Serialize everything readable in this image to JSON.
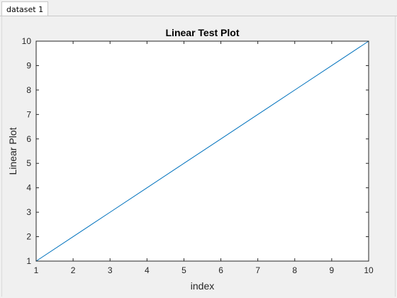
{
  "tabs": [
    {
      "label": "dataset 1",
      "active": true
    }
  ],
  "chart_data": {
    "type": "line",
    "title": "Linear Test Plot",
    "xlabel": "index",
    "ylabel": "Linear Plot",
    "x": [
      1,
      2,
      3,
      4,
      5,
      6,
      7,
      8,
      9,
      10
    ],
    "series": [
      {
        "values": [
          1,
          2,
          3,
          4,
          5,
          6,
          7,
          8,
          9,
          10
        ],
        "color": "#0072bd"
      }
    ],
    "xlim": [
      1,
      10
    ],
    "ylim": [
      1,
      10
    ],
    "xticks": [
      1,
      2,
      3,
      4,
      5,
      6,
      7,
      8,
      9,
      10
    ],
    "yticks": [
      1,
      2,
      3,
      4,
      5,
      6,
      7,
      8,
      9,
      10
    ],
    "grid": false,
    "box": true
  }
}
